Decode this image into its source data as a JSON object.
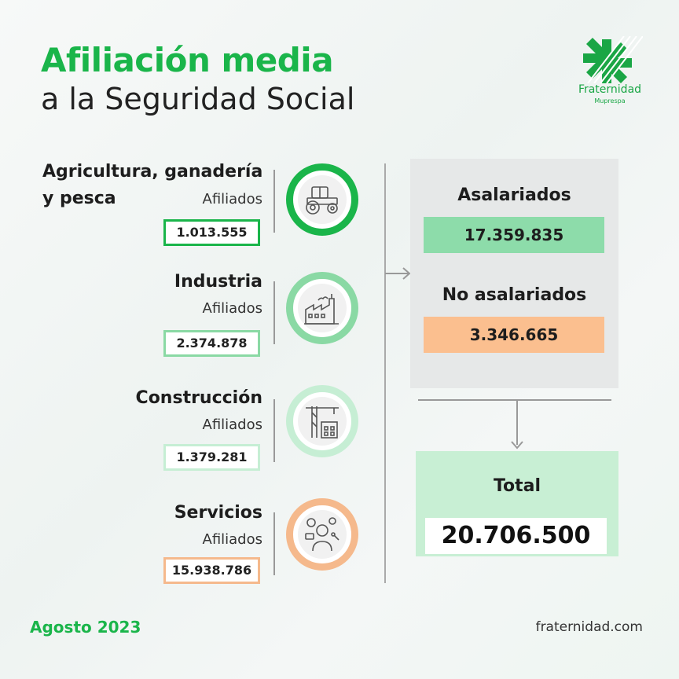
{
  "header": {
    "title_line1": "Afiliación media",
    "title_line2": "a la Seguridad Social"
  },
  "brand": {
    "name": "Fraternidad",
    "subname": "Muprespa",
    "website": "fraternidad.com",
    "color": "#1ab54a"
  },
  "sectors": [
    {
      "name_line1": "Agricultura, ganadería",
      "name_line2": "y pesca",
      "label": "Afiliados",
      "value": "1.013.555",
      "color": "#1ab54a",
      "icon": "tractor-icon"
    },
    {
      "name": "Industria",
      "label": "Afiliados",
      "value": "2.374.878",
      "color": "#8ad9a4",
      "icon": "factory-icon"
    },
    {
      "name": "Construcción",
      "label": "Afiliados",
      "value": "1.379.281",
      "color": "#c6eed4",
      "icon": "crane-icon"
    },
    {
      "name": "Servicios",
      "label": "Afiliados",
      "value": "15.938.786",
      "color": "#f5b98c",
      "icon": "services-worker-icon"
    }
  ],
  "summary": {
    "salaried_label": "Asalariados",
    "salaried_value": "17.359.835",
    "salaried_color": "#8ddcaa",
    "non_salaried_label": "No asalariados",
    "non_salaried_value": "3.346.665",
    "non_salaried_color": "#fbbf8f",
    "total_label": "Total",
    "total_value": "20.706.500"
  },
  "footer": {
    "date": "Agosto 2023"
  }
}
